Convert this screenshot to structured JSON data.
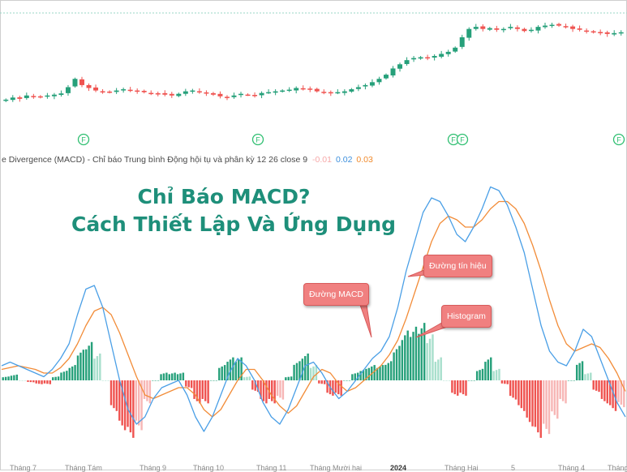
{
  "indicator_legend": {
    "name": "e Divergence (MACD) - Chỉ báo Trung bình Động hội tụ và phân kỳ 12 26 close 9",
    "value_histogram": "-0.01",
    "value_macd": "0.02",
    "value_signal": "0.03"
  },
  "headline": {
    "line1": "Chỉ Báo MACD?",
    "line2": "Cách Thiết Lập Và Ứng Dụng"
  },
  "callouts": {
    "macd": "Đường MACD",
    "signal": "Đường tín hiệu",
    "histogram": "Histogram"
  },
  "event_marker_label": "F",
  "x_axis_ticks": [
    {
      "label": "Tháng 7",
      "bold": false
    },
    {
      "label": "Tháng Tám",
      "bold": false
    },
    {
      "label": "Tháng 9",
      "bold": false
    },
    {
      "label": "Tháng 10",
      "bold": false
    },
    {
      "label": "Tháng 11",
      "bold": false
    },
    {
      "label": "Tháng Mười hai",
      "bold": false
    },
    {
      "label": "2024",
      "bold": true
    },
    {
      "label": "Tháng Hai",
      "bold": false
    },
    {
      "label": "5",
      "bold": false
    },
    {
      "label": "Tháng 4",
      "bold": false
    },
    {
      "label": "Tháng",
      "bold": false
    }
  ],
  "colors": {
    "macd_line": "#4a9fe6",
    "signal_line": "#f28c38",
    "hist_pos_strong": "#26a07a",
    "hist_pos_weak": "#a8dfcc",
    "hist_neg_strong": "#ef5350",
    "hist_neg_weak": "#f7b6b5",
    "candle_up": "#26a07a",
    "candle_down": "#ef5350",
    "headline": "#1e8f7a",
    "callout": "#f08080"
  },
  "chart_data": [
    {
      "type": "candlestick",
      "title": "",
      "closes": [
        0.6,
        0.65,
        0.62,
        0.7,
        0.68,
        0.66,
        0.7,
        0.72,
        0.75,
        0.9,
        1.1,
        0.95,
        0.88,
        0.82,
        0.8,
        0.78,
        0.82,
        0.85,
        0.82,
        0.8,
        0.78,
        0.76,
        0.75,
        0.72,
        0.7,
        0.74,
        0.8,
        0.82,
        0.78,
        0.75,
        0.72,
        0.68,
        0.66,
        0.7,
        0.74,
        0.72,
        0.7,
        0.76,
        0.78,
        0.8,
        0.82,
        0.84,
        0.88,
        0.86,
        0.84,
        0.8,
        0.78,
        0.76,
        0.78,
        0.8,
        0.85,
        0.9,
        0.95,
        1.02,
        1.1,
        1.2,
        1.35,
        1.45,
        1.55,
        1.6,
        1.62,
        1.6,
        1.65,
        1.7,
        1.75,
        1.85,
        2.1,
        2.3,
        2.35,
        2.3,
        2.32,
        2.28,
        2.3,
        2.35,
        2.3,
        2.25,
        2.28,
        2.35,
        2.38,
        2.4,
        2.38,
        2.36,
        2.3,
        2.28,
        2.25,
        2.22,
        2.2,
        2.18,
        2.2,
        2.22
      ]
    },
    {
      "type": "macd",
      "params": "12 26 close 9",
      "series": [
        {
          "name": "Đường MACD",
          "values": [
            0.04,
            0.05,
            0.04,
            0.03,
            0.02,
            0.01,
            0.03,
            0.06,
            0.1,
            0.18,
            0.25,
            0.26,
            0.2,
            0.1,
            0.0,
            -0.08,
            -0.12,
            -0.1,
            -0.05,
            -0.02,
            -0.01,
            0.0,
            -0.04,
            -0.1,
            -0.14,
            -0.1,
            -0.04,
            0.02,
            0.06,
            0.04,
            0.0,
            -0.06,
            -0.1,
            -0.12,
            -0.08,
            -0.02,
            0.04,
            0.05,
            0.02,
            -0.02,
            -0.05,
            -0.03,
            0.0,
            0.03,
            0.06,
            0.08,
            0.12,
            0.2,
            0.3,
            0.38,
            0.46,
            0.5,
            0.49,
            0.45,
            0.4,
            0.38,
            0.42,
            0.47,
            0.53,
            0.52,
            0.48,
            0.42,
            0.35,
            0.25,
            0.15,
            0.08,
            0.05,
            0.04,
            0.08,
            0.14,
            0.12,
            0.06,
            0.0,
            -0.06,
            -0.1
          ]
        },
        {
          "name": "Đường tín hiệu",
          "values": [
            0.03,
            0.035,
            0.04,
            0.035,
            0.03,
            0.02,
            0.02,
            0.035,
            0.06,
            0.1,
            0.15,
            0.19,
            0.2,
            0.18,
            0.13,
            0.07,
            0.01,
            -0.04,
            -0.05,
            -0.04,
            -0.03,
            -0.02,
            -0.02,
            -0.04,
            -0.08,
            -0.1,
            -0.08,
            -0.04,
            0.0,
            0.03,
            0.03,
            0.0,
            -0.04,
            -0.07,
            -0.09,
            -0.07,
            -0.03,
            0.01,
            0.03,
            0.02,
            -0.01,
            -0.03,
            -0.02,
            0.0,
            0.02,
            0.04,
            0.07,
            0.11,
            0.17,
            0.24,
            0.31,
            0.38,
            0.43,
            0.45,
            0.44,
            0.42,
            0.42,
            0.44,
            0.47,
            0.49,
            0.49,
            0.47,
            0.43,
            0.37,
            0.3,
            0.22,
            0.15,
            0.1,
            0.08,
            0.09,
            0.1,
            0.09,
            0.06,
            0.02,
            -0.03
          ]
        }
      ],
      "histogram": [
        0.01,
        0.015,
        0.0,
        -0.005,
        -0.01,
        -0.01,
        0.01,
        0.025,
        0.04,
        0.08,
        0.1,
        0.07,
        0.0,
        -0.08,
        -0.13,
        -0.15,
        -0.13,
        -0.06,
        0.0,
        0.02,
        0.02,
        0.02,
        -0.02,
        -0.06,
        -0.06,
        0.0,
        0.04,
        0.06,
        0.06,
        0.01,
        -0.03,
        -0.06,
        -0.06,
        -0.05,
        0.01,
        0.05,
        0.07,
        0.04,
        -0.01,
        -0.04,
        -0.04,
        0.0,
        0.02,
        0.03,
        0.04,
        0.04,
        0.05,
        0.09,
        0.13,
        0.14,
        0.15,
        0.12,
        0.06,
        0.0,
        -0.04,
        -0.04,
        0.0,
        0.03,
        0.06,
        0.03,
        -0.01,
        -0.05,
        -0.08,
        -0.12,
        -0.15,
        -0.14,
        -0.1,
        -0.06,
        0.0,
        0.05,
        0.02,
        -0.03,
        -0.06,
        -0.08,
        -0.07
      ]
    }
  ]
}
